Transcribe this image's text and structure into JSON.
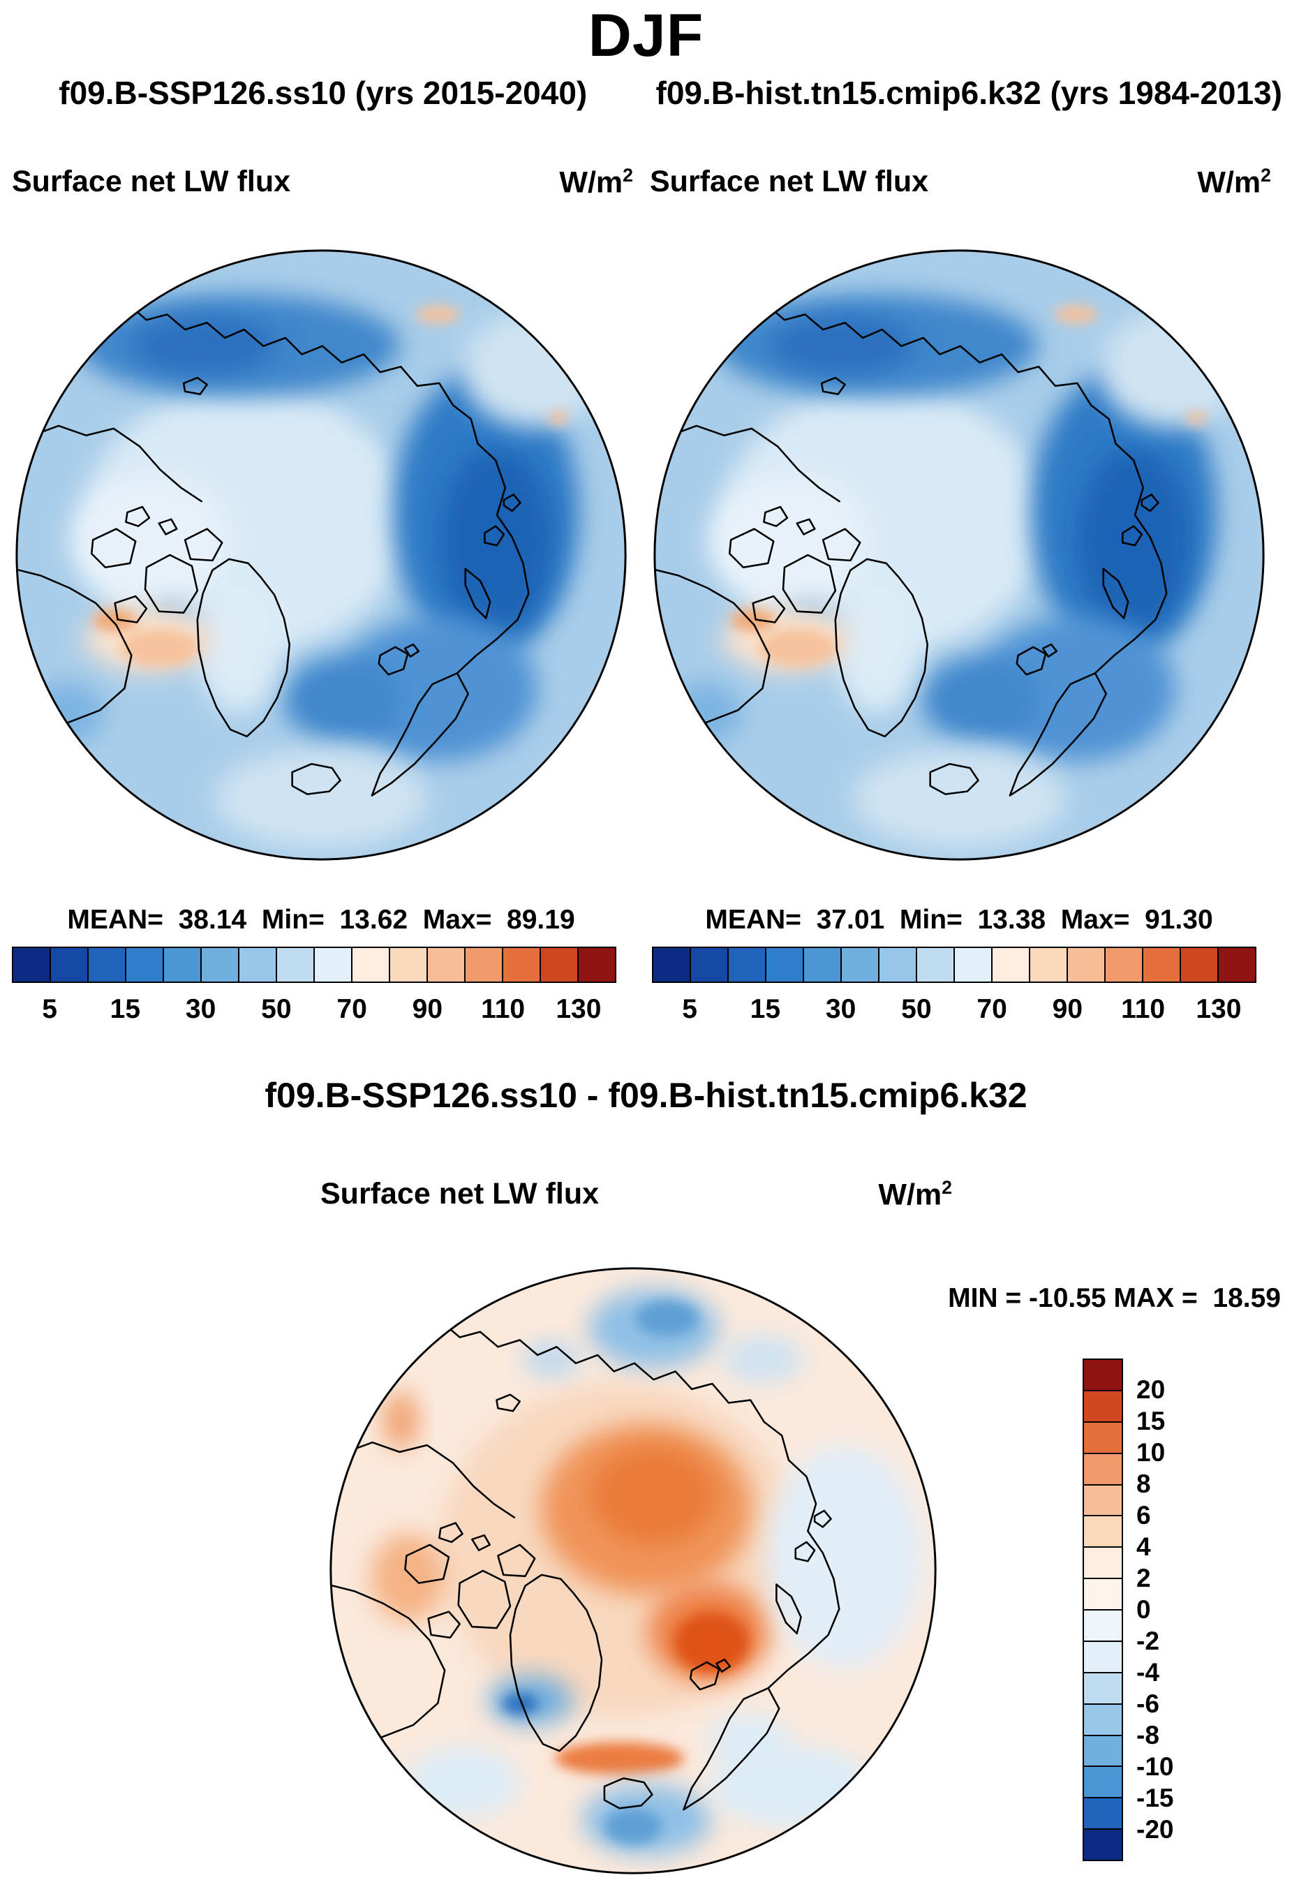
{
  "title": "DJF",
  "subtitle_left": "f09.B-SSP126.ss10 (yrs 2015-2040)",
  "subtitle_right": "f09.B-hist.tn15.cmip6.k32 (yrs 1984-2013)",
  "diff_title": "f09.B-SSP126.ss10 - f09.B-hist.tn15.cmip6.k32",
  "panel_left": {
    "field_label": "Surface net LW flux",
    "units_base": "W/m",
    "units_exp": "2",
    "stats": "MEAN=  38.14  Min=  13.62  Max=  89.19"
  },
  "panel_right": {
    "field_label": "Surface net LW flux",
    "units_base": "W/m",
    "units_exp": "2",
    "stats": "MEAN=  37.01  Min=  13.38  Max=  91.30"
  },
  "panel_diff": {
    "field_label": "Surface net LW flux",
    "units_base": "W/m",
    "units_exp": "2",
    "minmax": "MIN = -10.55 MAX =  18.59"
  },
  "colorbar_main": {
    "ticks": [
      "5",
      "15",
      "30",
      "50",
      "70",
      "90",
      "110",
      "130"
    ],
    "colors": [
      "#0c2c84",
      "#1548a5",
      "#1f63bb",
      "#2f7ecb",
      "#4b97d6",
      "#6fb0e0",
      "#97c6e9",
      "#c0dcf1",
      "#e3eff9",
      "#fdeee1",
      "#fbd9bd",
      "#f7bd97",
      "#f19b6c",
      "#e6703c",
      "#d1471f",
      "#8f1310"
    ]
  },
  "colorbar_diff": {
    "labels": [
      "20",
      "15",
      "10",
      "8",
      "6",
      "4",
      "2",
      "0",
      "-2",
      "-4",
      "-6",
      "-8",
      "-10",
      "-15",
      "-20"
    ],
    "colors": [
      "#8f1310",
      "#d1471f",
      "#e6703c",
      "#f19b6c",
      "#f7bd97",
      "#fbd9bd",
      "#fdeee1",
      "#fdf5ec",
      "#eef6fb",
      "#e3eff9",
      "#c0dcf1",
      "#97c6e9",
      "#6fb0e0",
      "#4b97d6",
      "#1f63bb",
      "#0c2c84"
    ]
  },
  "chart_data": [
    {
      "type": "heatmap",
      "title": "Surface net LW flux — f09.B-SSP126.ss10 (yrs 2015-2040)",
      "units": "W/m2",
      "projection": "north polar stereographic map",
      "season": "DJF",
      "mean": 38.14,
      "min": 13.62,
      "max": 89.19,
      "levels": [
        5,
        10,
        15,
        20,
        30,
        40,
        50,
        60,
        70,
        80,
        90,
        100,
        110,
        120,
        130
      ],
      "tick_labels": [
        5,
        15,
        30,
        50,
        70,
        90,
        110,
        130
      ],
      "palette": "blue-white-red, 16 classes",
      "legend_position": "below"
    },
    {
      "type": "heatmap",
      "title": "Surface net LW flux — f09.B-hist.tn15.cmip6.k32 (yrs 1984-2013)",
      "units": "W/m2",
      "projection": "north polar stereographic map",
      "season": "DJF",
      "mean": 37.01,
      "min": 13.38,
      "max": 91.3,
      "levels": [
        5,
        10,
        15,
        20,
        30,
        40,
        50,
        60,
        70,
        80,
        90,
        100,
        110,
        120,
        130
      ],
      "tick_labels": [
        5,
        15,
        30,
        50,
        70,
        90,
        110,
        130
      ],
      "palette": "blue-white-red, 16 classes",
      "legend_position": "below"
    },
    {
      "type": "heatmap",
      "title": "Surface net LW flux difference — f09.B-SSP126.ss10 - f09.B-hist.tn15.cmip6.k32",
      "units": "W/m2",
      "projection": "north polar stereographic map",
      "season": "DJF",
      "min": -10.55,
      "max": 18.59,
      "levels": [
        -20,
        -15,
        -10,
        -8,
        -6,
        -4,
        -2,
        0,
        2,
        4,
        6,
        8,
        10,
        15,
        20
      ],
      "palette": "blue-white-red, 16 classes",
      "legend_position": "right"
    }
  ]
}
